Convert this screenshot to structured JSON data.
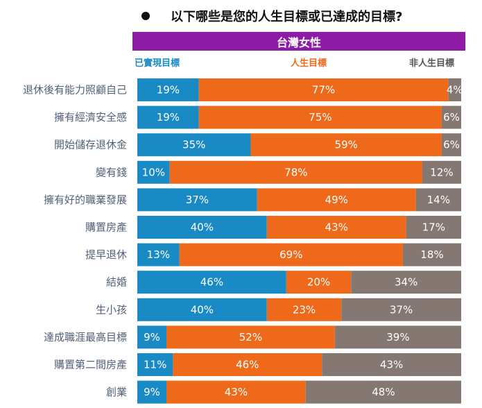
{
  "title": "以下哪些是您的人生目標或已達成的目標?",
  "group_label": "台灣女性",
  "colors": {
    "achieved": "#1a8ac4",
    "goal": "#ee6a1a",
    "not_goal": "#857873",
    "band": "#8d1ba5"
  },
  "chart_data": {
    "type": "bar",
    "orientation": "horizontal",
    "stacked": true,
    "percent_stacked": true,
    "legend_position": "top",
    "categories": [
      "退休後有能力照顧自己",
      "擁有經濟安全感",
      "開始儲存退休金",
      "變有錢",
      "擁有好的職業發展",
      "購置房產",
      "提早退休",
      "結婚",
      "生小孩",
      "達成職涯最高目標",
      "購置第二間房產",
      "創業"
    ],
    "series": [
      {
        "name": "已實現目標",
        "values": [
          19,
          19,
          35,
          10,
          37,
          40,
          13,
          46,
          40,
          9,
          11,
          9
        ]
      },
      {
        "name": "人生目標",
        "values": [
          77,
          75,
          59,
          78,
          49,
          43,
          69,
          20,
          23,
          52,
          46,
          43
        ]
      },
      {
        "name": "非人生目標",
        "values": [
          4,
          6,
          6,
          12,
          14,
          17,
          18,
          34,
          37,
          39,
          43,
          48
        ]
      }
    ]
  }
}
